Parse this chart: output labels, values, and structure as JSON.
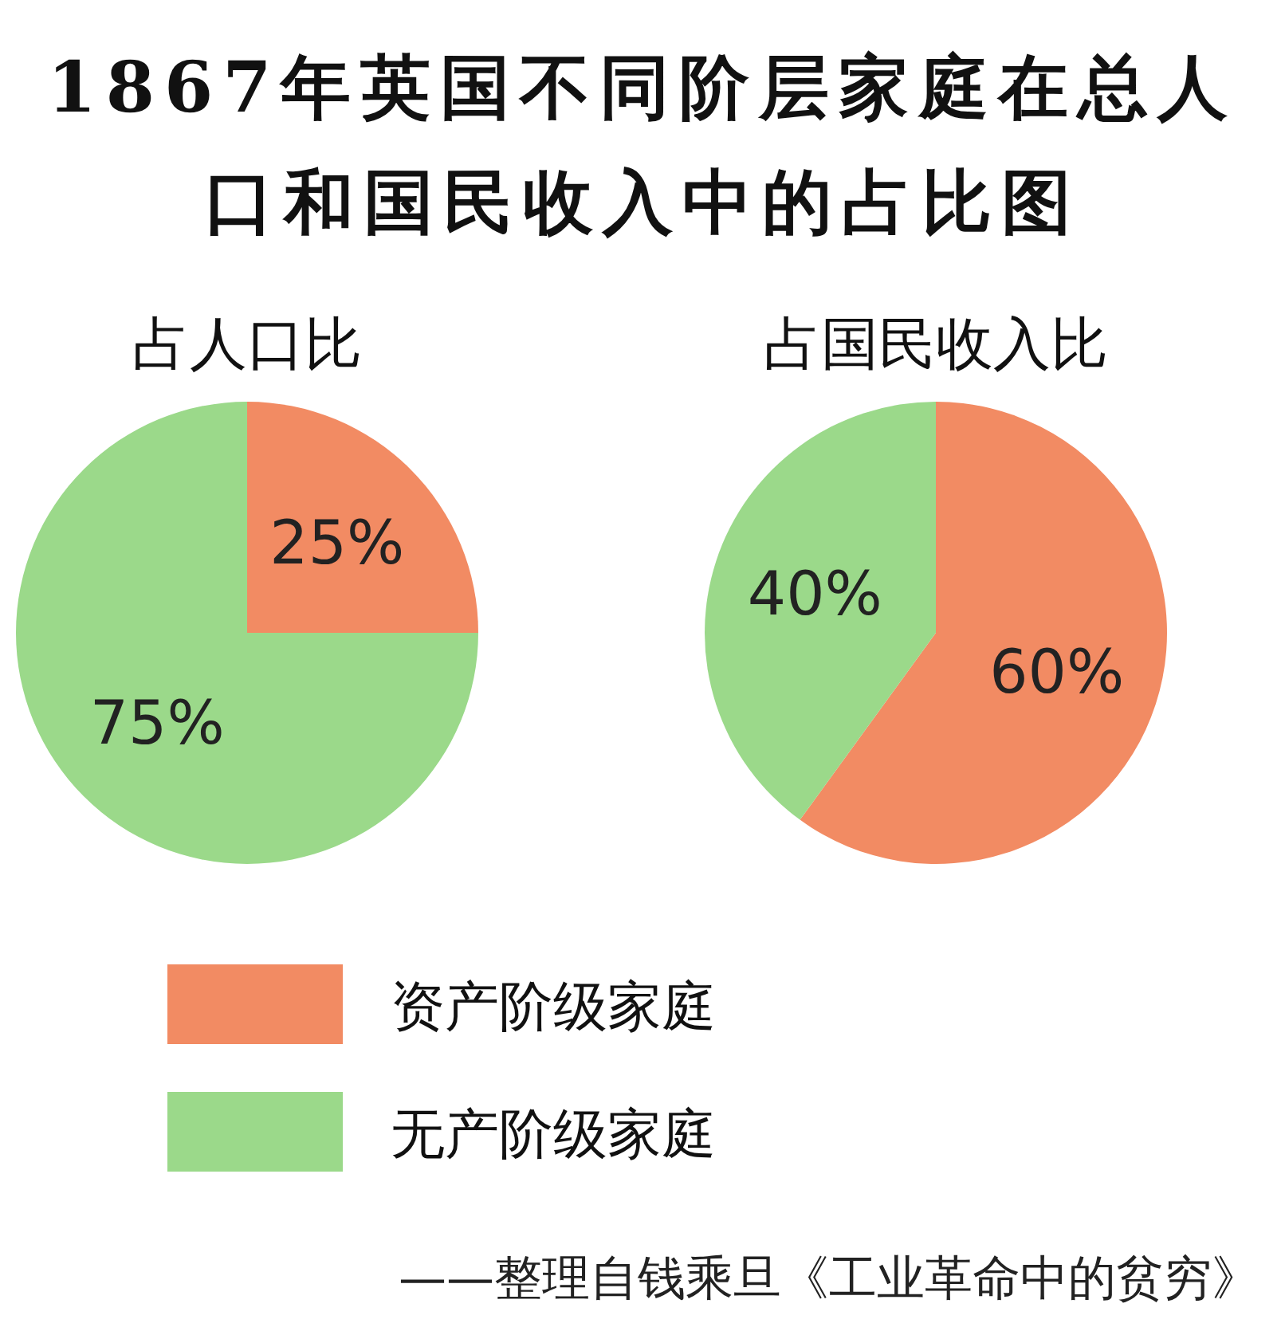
{
  "chart_data": [
    {
      "type": "pie",
      "title": "1867年英国不同阶层家庭在总人口和国民收入中的占比图",
      "subtitle": "占人口比",
      "categories": [
        "资产阶级家庭",
        "无产阶级家庭"
      ],
      "values": [
        25,
        75
      ],
      "colors": [
        "#f28b63",
        "#9bd98a"
      ],
      "value_labels": [
        "25%",
        "75%"
      ],
      "legend": "bottom"
    },
    {
      "type": "pie",
      "subtitle": "占国民收入比",
      "values": [
        60,
        40
      ],
      "colors": [
        "#f28b63",
        "#9bd98a"
      ],
      "value_labels": [
        "60%",
        "40%"
      ],
      "annotations": [
        "——整理自钱乘旦《工业革命中的贫穷》"
      ]
    }
  ]
}
